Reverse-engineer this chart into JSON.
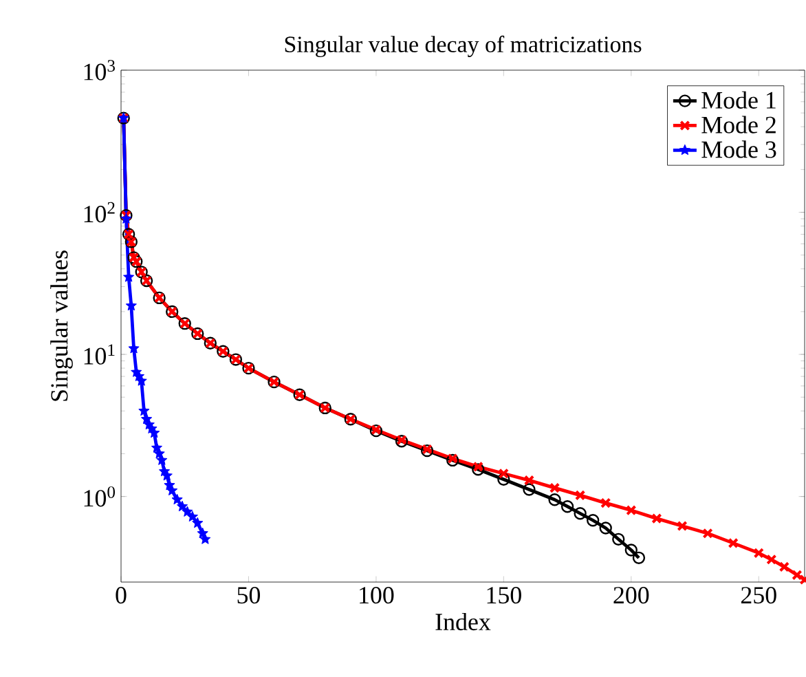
{
  "chart_data": {
    "type": "line",
    "title": "Singular value decay of matricizations",
    "xlabel": "Index",
    "ylabel": "Singular values",
    "log": "y",
    "xlim": [
      0,
      268
    ],
    "ylim": [
      0.25,
      1000
    ],
    "xticks": [
      0,
      50,
      100,
      150,
      200,
      250
    ],
    "yticks": [
      {
        "value": 1,
        "label": "10$^{0}$"
      },
      {
        "value": 10,
        "label": "10$^{1}$"
      },
      {
        "value": 100,
        "label": "10$^{2}$"
      },
      {
        "value": 1000,
        "label": "10$^{3}$"
      }
    ],
    "legend": "top right",
    "grid": false,
    "series": [
      {
        "name": "Mode 1",
        "color": "#000000",
        "marker": "circle",
        "x": [
          1,
          2,
          3,
          4,
          5,
          6,
          8,
          10,
          15,
          20,
          25,
          30,
          35,
          40,
          45,
          50,
          60,
          70,
          80,
          90,
          100,
          110,
          120,
          130,
          140,
          150,
          160,
          170,
          175,
          180,
          185,
          190,
          195,
          200,
          203
        ],
        "values": [
          460,
          95,
          70,
          62,
          48,
          45,
          38,
          33,
          25,
          20,
          16.5,
          14,
          12,
          10.5,
          9.2,
          8,
          6.4,
          5.2,
          4.2,
          3.5,
          2.9,
          2.45,
          2.1,
          1.8,
          1.55,
          1.32,
          1.12,
          0.95,
          0.85,
          0.76,
          0.68,
          0.6,
          0.5,
          0.42,
          0.37
        ]
      },
      {
        "name": "Mode 2",
        "color": "#ff0000",
        "marker": "cross",
        "x": [
          1,
          2,
          3,
          4,
          5,
          6,
          8,
          10,
          15,
          20,
          25,
          30,
          35,
          40,
          45,
          50,
          60,
          70,
          80,
          90,
          100,
          110,
          120,
          130,
          140,
          150,
          160,
          170,
          180,
          190,
          200,
          210,
          220,
          230,
          240,
          250,
          255,
          260,
          265,
          268
        ],
        "values": [
          460,
          95,
          70,
          62,
          48,
          45,
          38,
          33,
          25,
          20,
          16.5,
          14,
          12,
          10.5,
          9.2,
          8,
          6.4,
          5.2,
          4.2,
          3.5,
          2.95,
          2.5,
          2.15,
          1.85,
          1.62,
          1.45,
          1.3,
          1.15,
          1.02,
          0.9,
          0.8,
          0.7,
          0.62,
          0.55,
          0.47,
          0.4,
          0.36,
          0.32,
          0.28,
          0.26
        ]
      },
      {
        "name": "Mode 3",
        "color": "#0000ff",
        "marker": "star",
        "x": [
          1,
          2,
          3,
          4,
          5,
          6,
          7,
          8,
          9,
          10,
          11,
          12,
          13,
          14,
          15,
          16,
          17,
          18,
          19,
          20,
          22,
          24,
          26,
          28,
          30,
          32,
          33
        ],
        "values": [
          460,
          90,
          35,
          22,
          11,
          7.5,
          7,
          6.5,
          4,
          3.5,
          3.2,
          3,
          2.8,
          2.2,
          2,
          1.8,
          1.5,
          1.4,
          1.2,
          1.1,
          0.95,
          0.85,
          0.78,
          0.72,
          0.65,
          0.55,
          0.5
        ]
      }
    ]
  }
}
